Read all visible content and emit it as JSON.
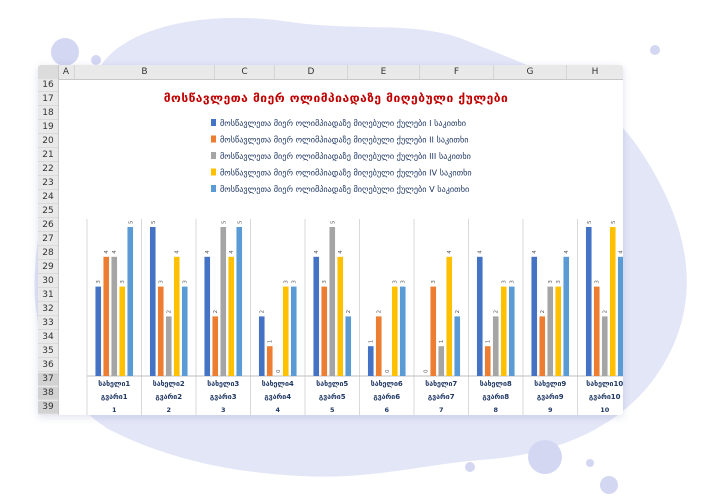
{
  "sheet": {
    "columns": [
      "A",
      "B",
      "C",
      "D",
      "E",
      "F",
      "G",
      "H"
    ],
    "rows": [
      "16",
      "17",
      "18",
      "19",
      "20",
      "21",
      "22",
      "23",
      "24",
      "25",
      "26",
      "27",
      "28",
      "29",
      "30",
      "31",
      "32",
      "33",
      "34",
      "35",
      "36",
      "37",
      "38",
      "39"
    ]
  },
  "colors": {
    "title": "#c00000",
    "legend_text": "#203864",
    "category_text": "#203864",
    "background_blob": "#e3e6f7",
    "background_dots": "#d3d7f2"
  },
  "chart_data": {
    "type": "bar",
    "title": "მოსწავლეთა მიერ ოლიმპიადაზე მიღებული ქულები",
    "categories": [
      {
        "line1": "სახელი1",
        "line2": "გვარი1",
        "line3": "1"
      },
      {
        "line1": "სახელი2",
        "line2": "გვარი2",
        "line3": "2"
      },
      {
        "line1": "სახელი3",
        "line2": "გვარი3",
        "line3": "3"
      },
      {
        "line1": "სახელი4",
        "line2": "გვარი4",
        "line3": "4"
      },
      {
        "line1": "სახელი5",
        "line2": "გვარი5",
        "line3": "5"
      },
      {
        "line1": "სახელი6",
        "line2": "გვარი6",
        "line3": "6"
      },
      {
        "line1": "სახელი7",
        "line2": "გვარი7",
        "line3": "7"
      },
      {
        "line1": "სახელი8",
        "line2": "გვარი8",
        "line3": "8"
      },
      {
        "line1": "სახელი9",
        "line2": "გვარი9",
        "line3": "9"
      },
      {
        "line1": "სახელი10",
        "line2": "გვარი10",
        "line3": "10"
      }
    ],
    "ylim": [
      0,
      5
    ],
    "legend_position": "top",
    "series": [
      {
        "name": "მოსწავლეთა მიერ ოლიმპიადაზე მიღებული ქულები I საკითხი",
        "color": "#4472c4",
        "values": [
          3,
          5,
          4,
          2,
          4,
          1,
          0,
          4,
          4,
          5
        ]
      },
      {
        "name": "მოსწავლეთა მიერ ოლიმპიადაზე მიღებული ქულები II საკითხი",
        "color": "#ed7d31",
        "values": [
          4,
          3,
          2,
          1,
          3,
          2,
          3,
          1,
          2,
          3
        ]
      },
      {
        "name": "მოსწავლეთა მიერ ოლიმპიადაზე მიღებული ქულები III საკითხი",
        "color": "#a5a5a5",
        "values": [
          4,
          2,
          5,
          0,
          5,
          0,
          1,
          2,
          3,
          2
        ]
      },
      {
        "name": "მოსწავლეთა მიერ ოლიმპიადაზე მიღებული ქულები IV საკითხი",
        "color": "#ffc000",
        "values": [
          3,
          4,
          4,
          3,
          4,
          3,
          4,
          3,
          3,
          5
        ]
      },
      {
        "name": "მოსწავლეთა მიერ ოლიმპიადაზე მიღებული ქულები V საკითხი",
        "color": "#5b9bd5",
        "values": [
          5,
          3,
          5,
          3,
          2,
          3,
          2,
          3,
          4,
          4
        ]
      }
    ]
  }
}
